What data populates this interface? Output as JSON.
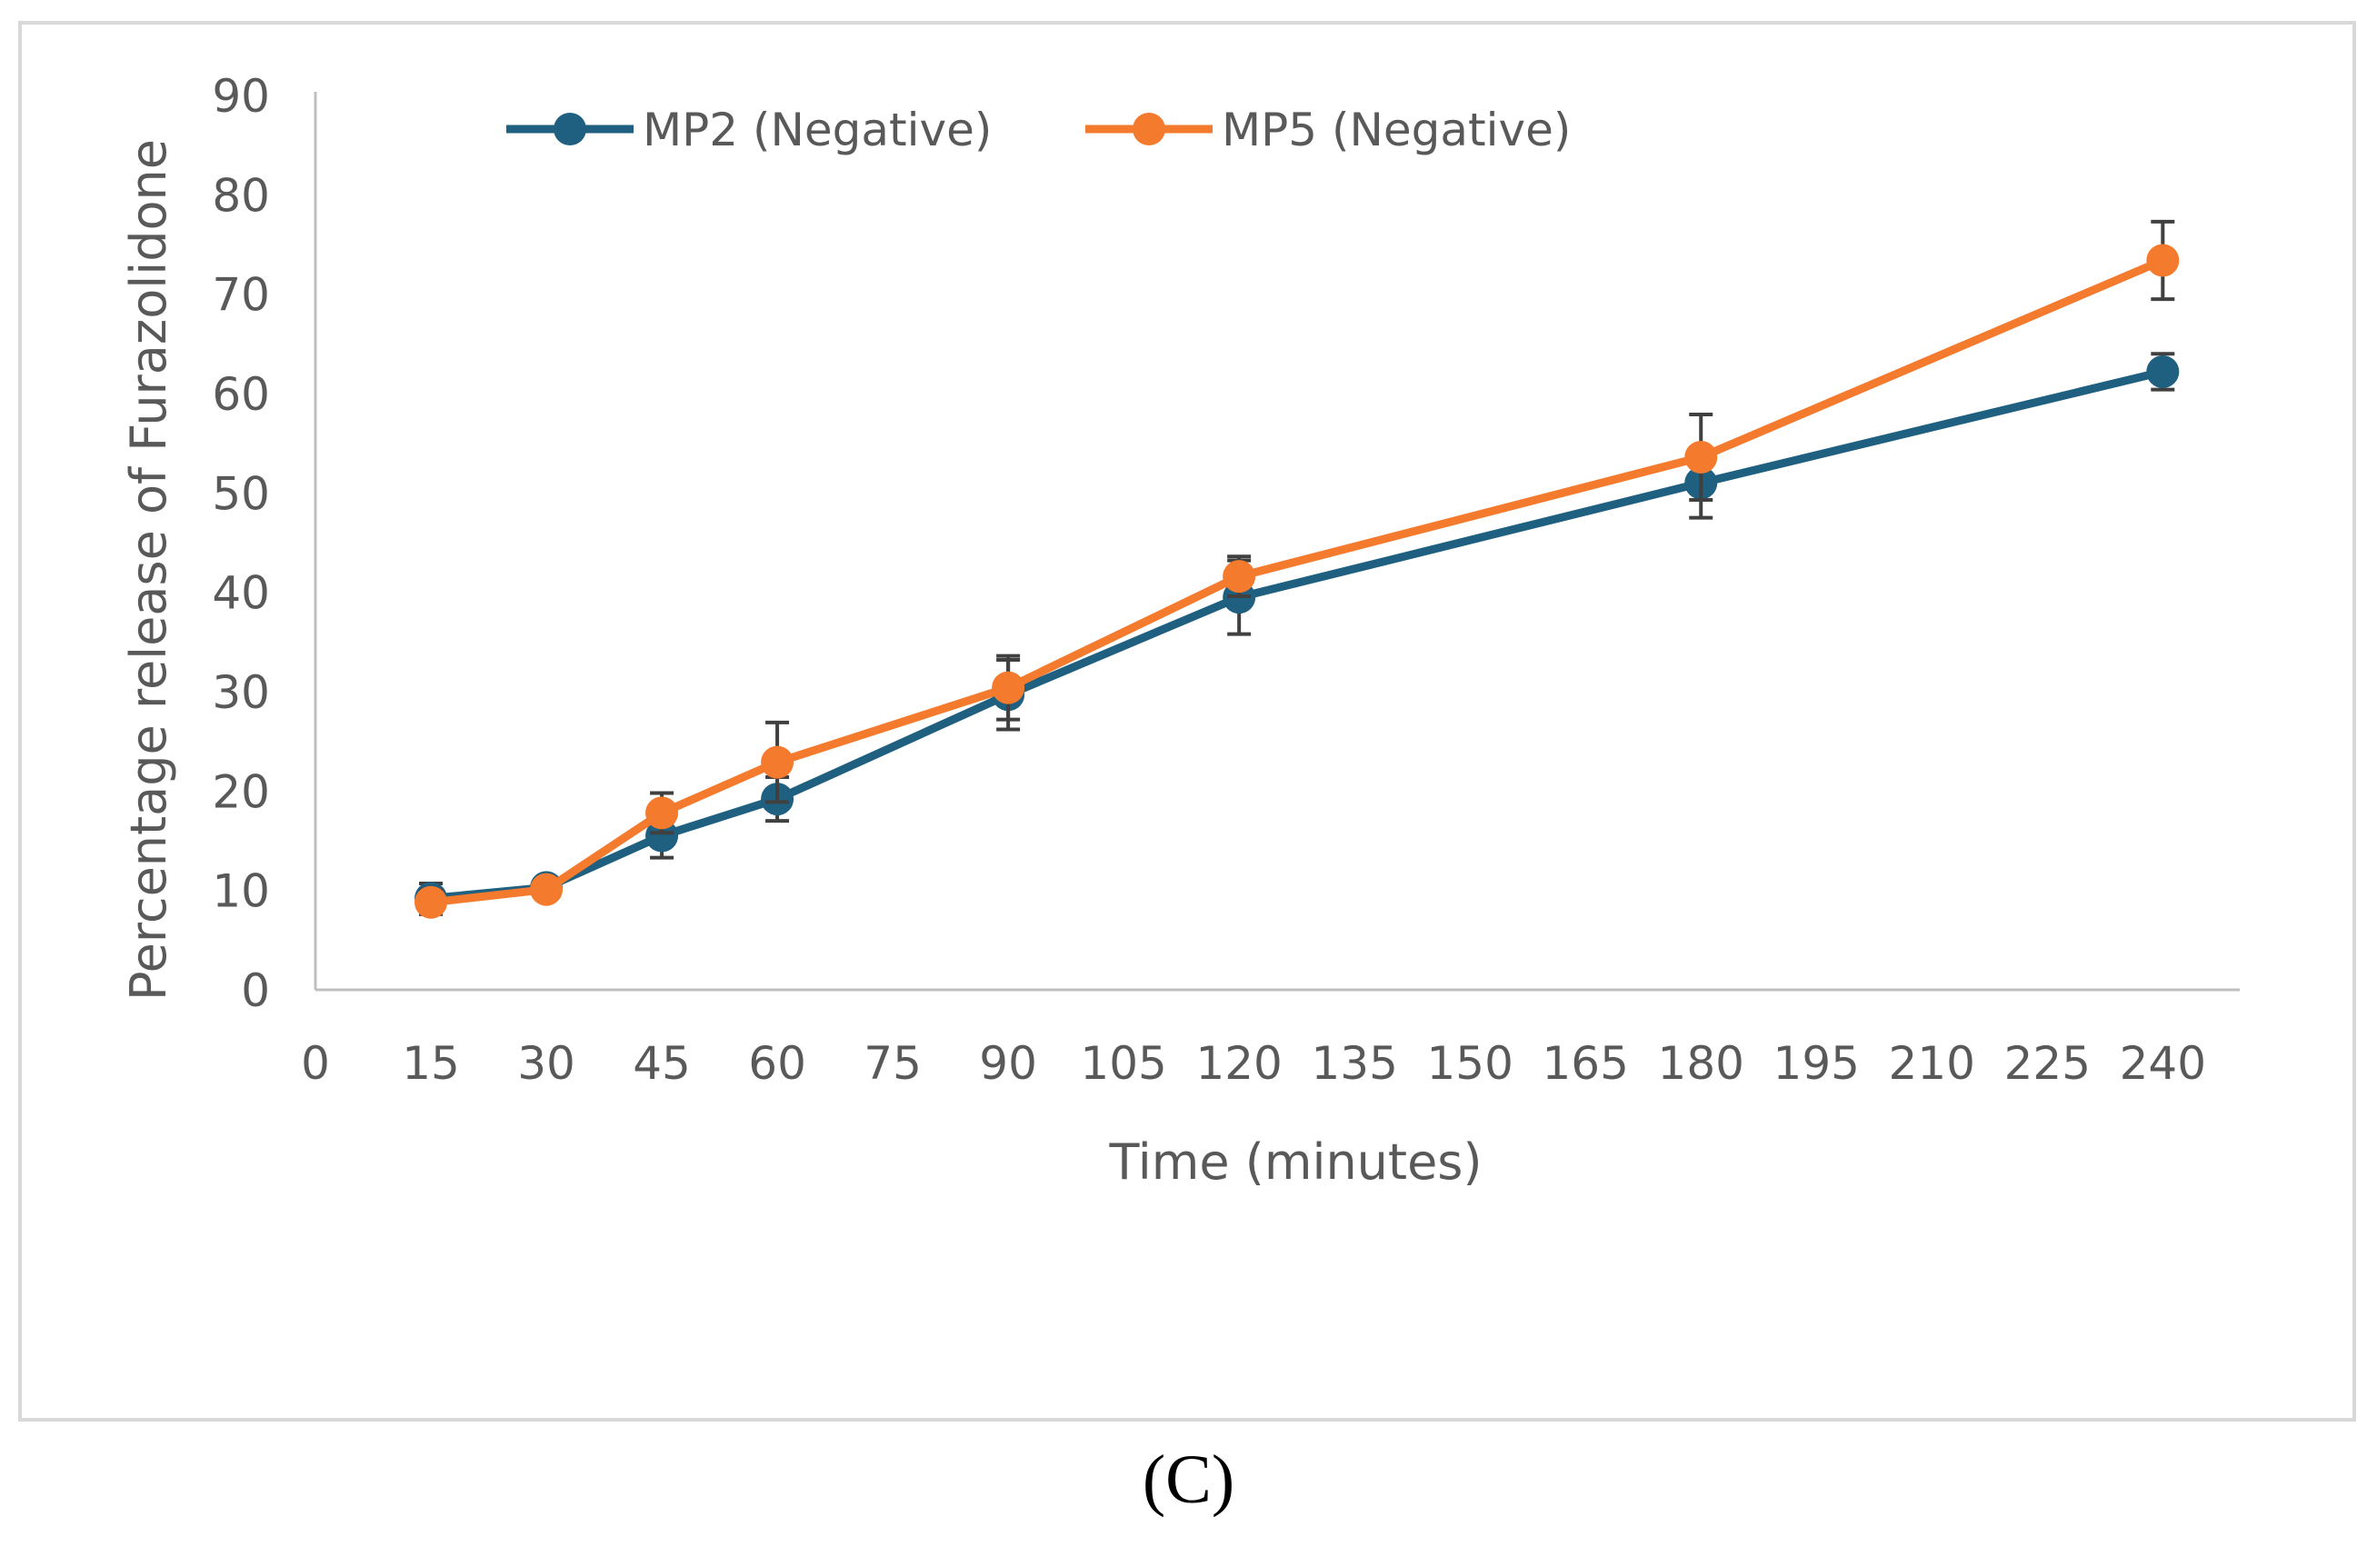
{
  "panel_caption": "(C)",
  "chart_data": {
    "type": "line",
    "title": "",
    "xlabel": "Time (minutes)",
    "ylabel": "Percentage release of Furazolidone",
    "xlim": [
      0,
      250
    ],
    "ylim": [
      0,
      90
    ],
    "x_ticks": [
      0,
      15,
      30,
      45,
      60,
      75,
      90,
      105,
      120,
      135,
      150,
      165,
      180,
      195,
      210,
      225,
      240
    ],
    "y_ticks": [
      0,
      10,
      20,
      30,
      40,
      50,
      60,
      70,
      80,
      90
    ],
    "grid": false,
    "legend_position": "top",
    "x": [
      15,
      30,
      45,
      60,
      90,
      120,
      180,
      240
    ],
    "series": [
      {
        "name": "MP2 (Negative)",
        "color": "#1f5f7f",
        "values": [
          9.2,
          10.3,
          15.5,
          19.2,
          29.7,
          39.5,
          51.0,
          62.2
        ],
        "errors": [
          1.5,
          0.7,
          2.2,
          2.2,
          3.5,
          3.7,
          3.5,
          1.8
        ]
      },
      {
        "name": "MP5 (Negative)",
        "color": "#f47b2e",
        "values": [
          8.8,
          10.1,
          17.8,
          22.9,
          30.4,
          41.6,
          53.6,
          73.4
        ],
        "errors": [
          1.2,
          0.6,
          2.0,
          4.0,
          3.2,
          2.0,
          4.3,
          3.9
        ]
      }
    ]
  }
}
